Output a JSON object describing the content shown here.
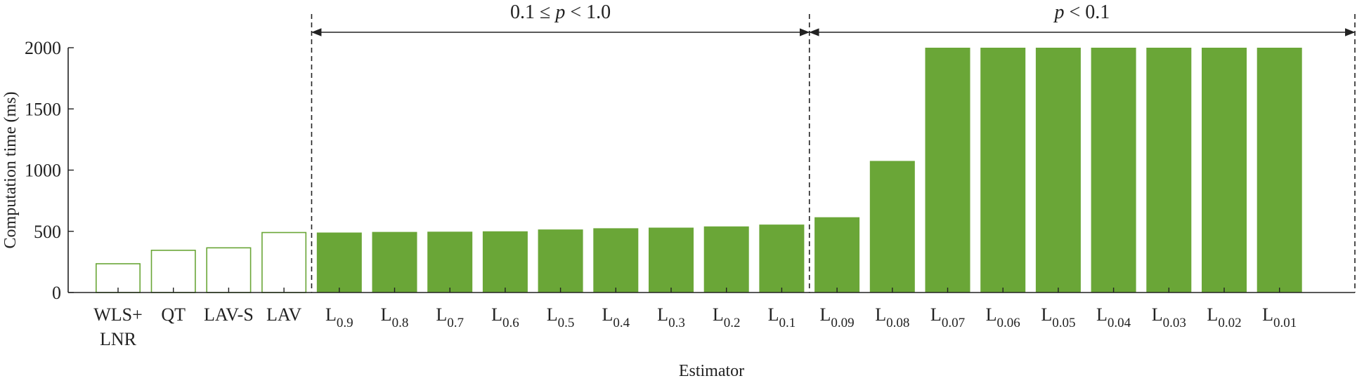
{
  "chart_data": {
    "type": "bar",
    "xlabel": "Estimator",
    "ylabel": "Computation time (ms)",
    "ylim": [
      0,
      2000
    ],
    "yticks": [
      "0",
      "500",
      "1000",
      "1500",
      "2000"
    ],
    "grid": false,
    "legend": "none",
    "colors": {
      "filled": "#6aa637",
      "outline": "#6aa637",
      "axis": "#222222"
    },
    "categories": [
      {
        "base": "WLS+",
        "sub": "",
        "line2": "LNR",
        "value": 235,
        "style": "outline"
      },
      {
        "base": "QT",
        "sub": "",
        "line2": "",
        "value": 345,
        "style": "outline"
      },
      {
        "base": "LAV-S",
        "sub": "",
        "line2": "",
        "value": 365,
        "style": "outline"
      },
      {
        "base": "LAV",
        "sub": "",
        "line2": "",
        "value": 490,
        "style": "outline"
      },
      {
        "base": "L",
        "sub": "0.9",
        "line2": "",
        "value": 490,
        "style": "filled"
      },
      {
        "base": "L",
        "sub": "0.8",
        "line2": "",
        "value": 495,
        "style": "filled"
      },
      {
        "base": "L",
        "sub": "0.7",
        "line2": "",
        "value": 497,
        "style": "filled"
      },
      {
        "base": "L",
        "sub": "0.6",
        "line2": "",
        "value": 500,
        "style": "filled"
      },
      {
        "base": "L",
        "sub": "0.5",
        "line2": "",
        "value": 515,
        "style": "filled"
      },
      {
        "base": "L",
        "sub": "0.4",
        "line2": "",
        "value": 525,
        "style": "filled"
      },
      {
        "base": "L",
        "sub": "0.3",
        "line2": "",
        "value": 530,
        "style": "filled"
      },
      {
        "base": "L",
        "sub": "0.2",
        "line2": "",
        "value": 540,
        "style": "filled"
      },
      {
        "base": "L",
        "sub": "0.1",
        "line2": "",
        "value": 555,
        "style": "filled"
      },
      {
        "base": "L",
        "sub": "0.09",
        "line2": "",
        "value": 615,
        "style": "filled"
      },
      {
        "base": "L",
        "sub": "0.08",
        "line2": "",
        "value": 1075,
        "style": "filled"
      },
      {
        "base": "L",
        "sub": "0.07",
        "line2": "",
        "value": 2000,
        "style": "filled"
      },
      {
        "base": "L",
        "sub": "0.06",
        "line2": "",
        "value": 2000,
        "style": "filled"
      },
      {
        "base": "L",
        "sub": "0.05",
        "line2": "",
        "value": 2000,
        "style": "filled"
      },
      {
        "base": "L",
        "sub": "0.04",
        "line2": "",
        "value": 2000,
        "style": "filled"
      },
      {
        "base": "L",
        "sub": "0.03",
        "line2": "",
        "value": 2000,
        "style": "filled"
      },
      {
        "base": "L",
        "sub": "0.02",
        "line2": "",
        "value": 2000,
        "style": "filled"
      },
      {
        "base": "L",
        "sub": "0.01",
        "line2": "",
        "value": 2000,
        "style": "filled"
      }
    ],
    "regions": [
      {
        "label_pre": "0.1 ≤ ",
        "label_var": "p",
        "label_post": " < 1.0",
        "from_index": 4,
        "to_index": 12
      },
      {
        "label_pre": "",
        "label_var": "p",
        "label_post": " < 0.1",
        "from_index": 13,
        "to_index": 21
      }
    ]
  }
}
